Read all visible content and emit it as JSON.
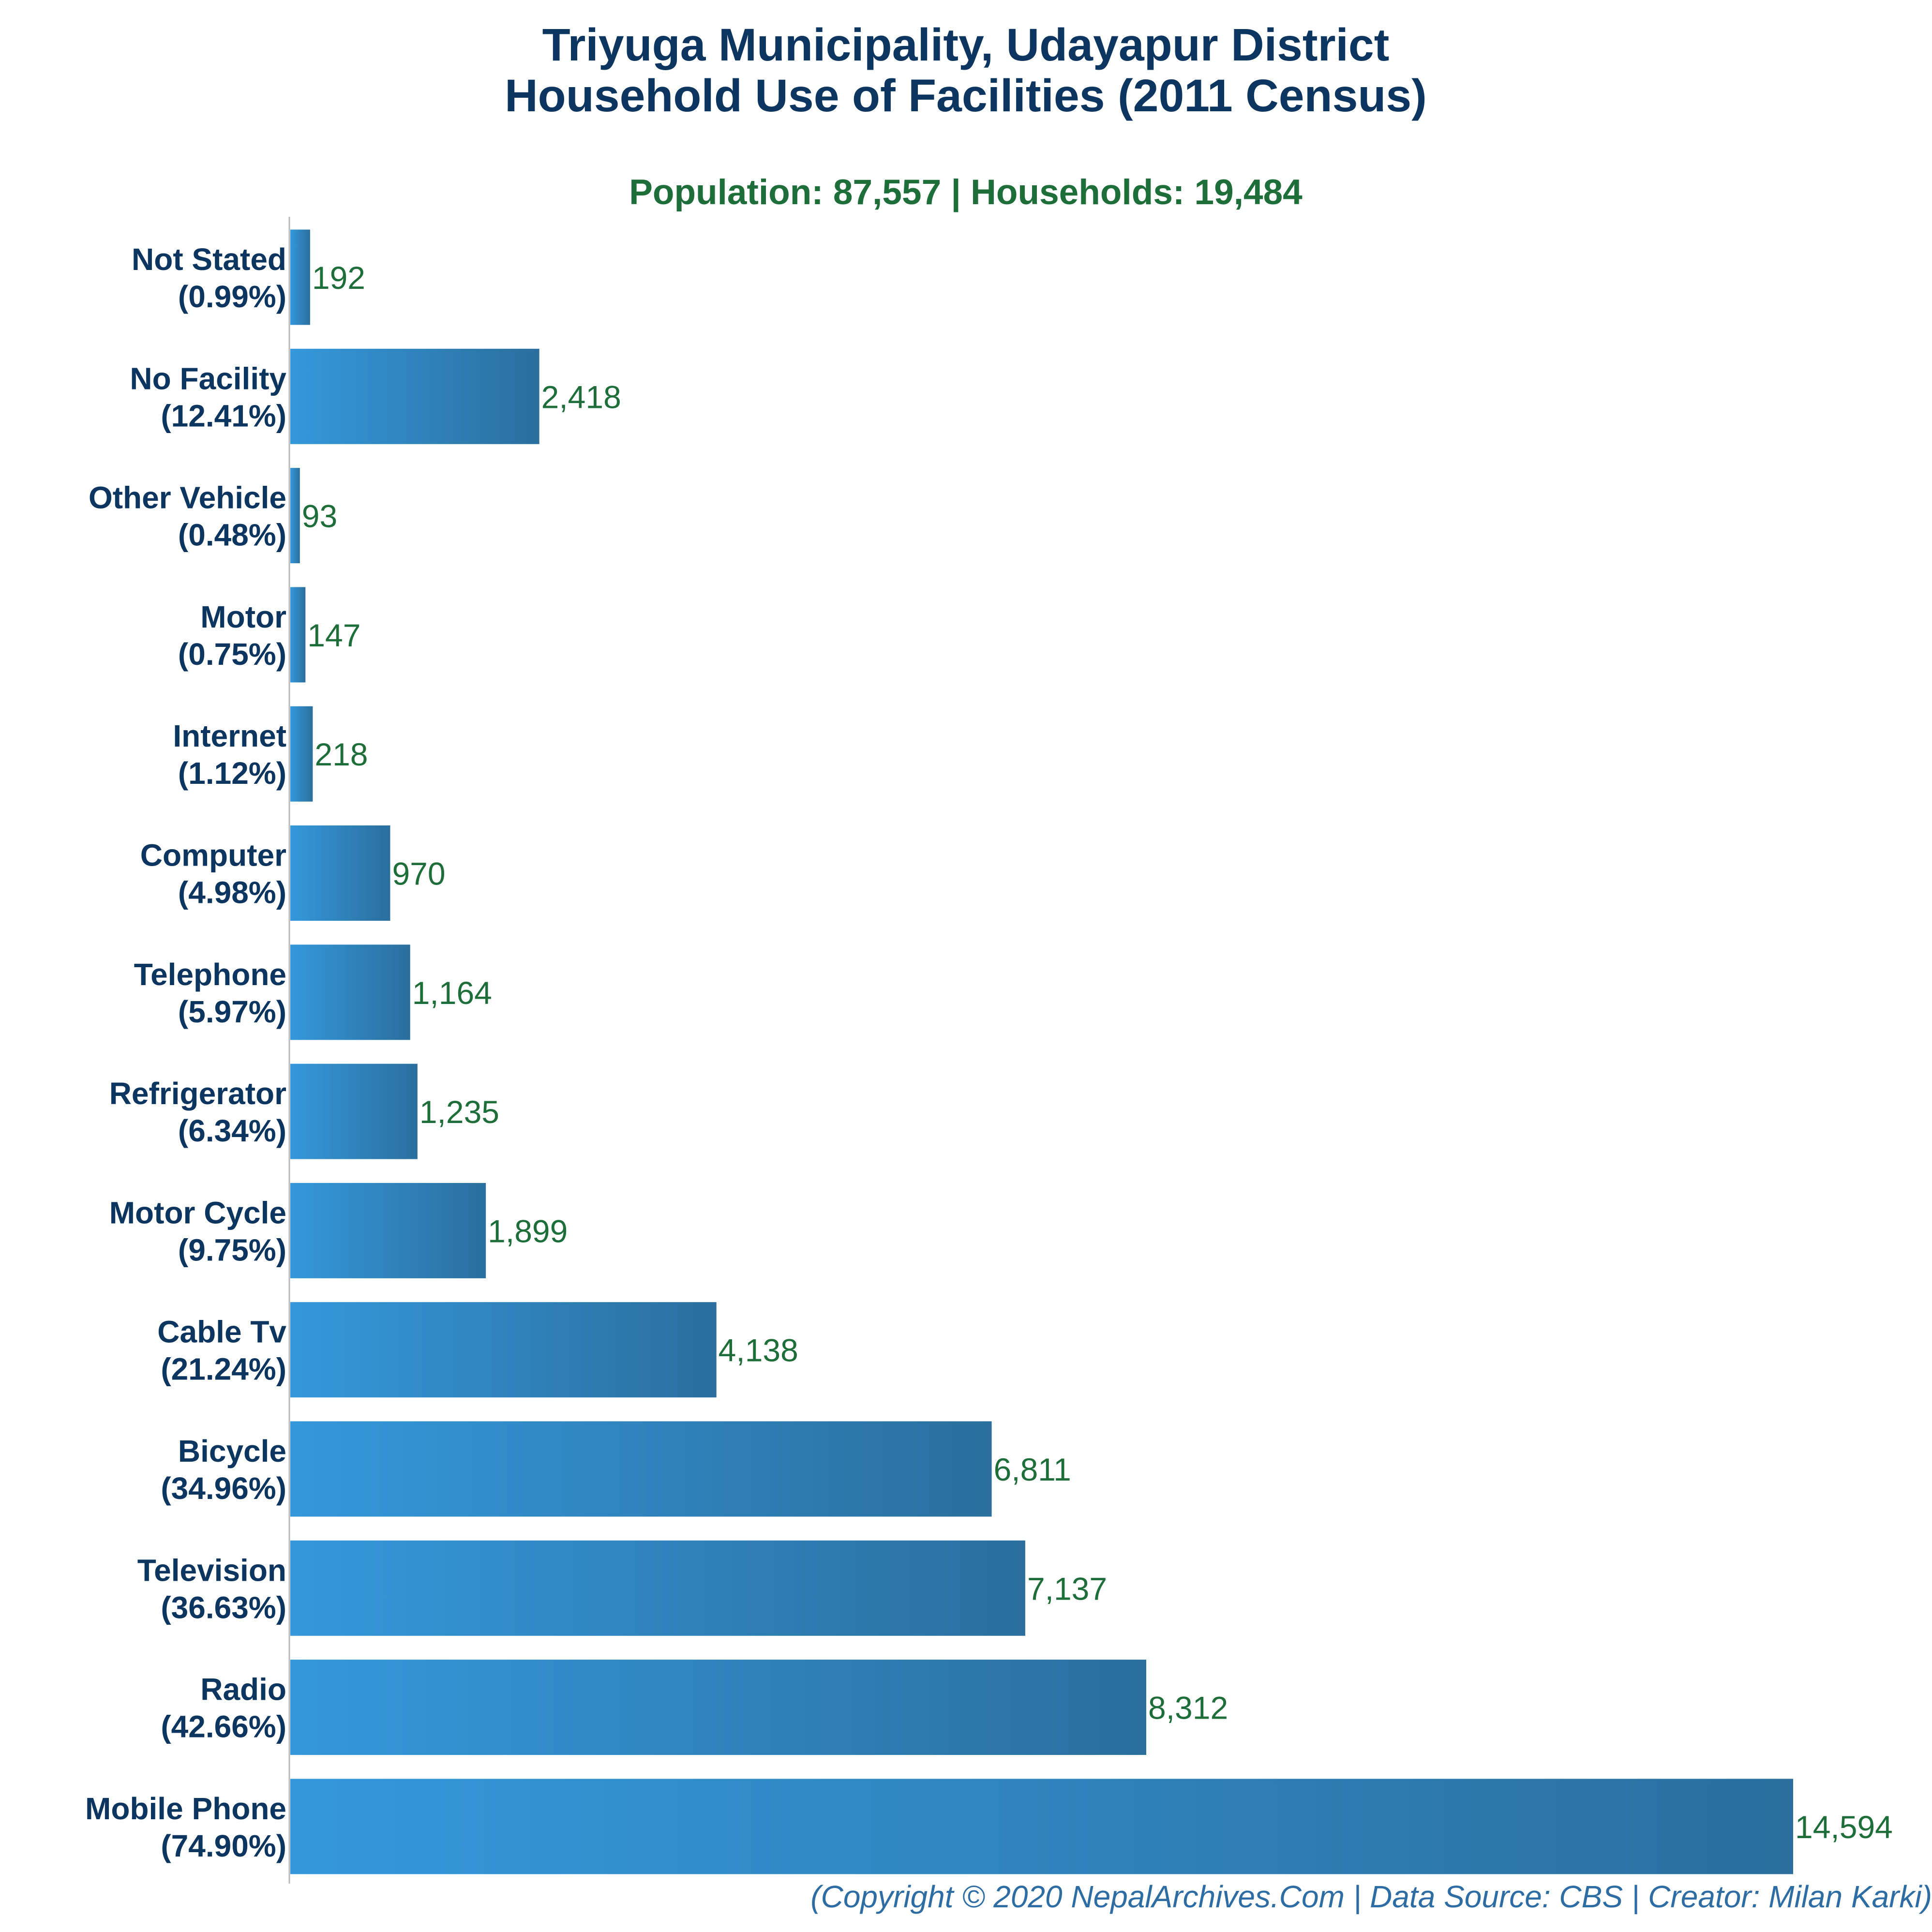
{
  "colors": {
    "title": "#0c3560",
    "subtitle": "#1e6e3a",
    "value_label": "#1e6e3a",
    "bar_gradient_start": "#3498db",
    "bar_gradient_end": "#2a6f9e",
    "footer": "#2e6da4"
  },
  "chart_data": {
    "type": "bar",
    "orientation": "horizontal",
    "title": [
      "Triyuga Municipality, Udayapur District",
      "Household Use of Facilities (2011 Census)"
    ],
    "subtitle": "Population: 87,557 | Households: 19,484",
    "footer": "(Copyright © 2020 NepalArchives.Com | Data Source: CBS | Creator: Milan Karki)",
    "xlim": [
      0,
      14594
    ],
    "grid": false,
    "categories": [
      "Not Stated",
      "No Facility",
      "Other Vehicle",
      "Motor",
      "Internet",
      "Computer",
      "Telephone",
      "Refrigerator",
      "Motor Cycle",
      "Cable Tv",
      "Bicycle",
      "Television",
      "Radio",
      "Mobile Phone"
    ],
    "percent_labels": [
      "(0.99%)",
      "(12.41%)",
      "(0.48%)",
      "(0.75%)",
      "(1.12%)",
      "(4.98%)",
      "(5.97%)",
      "(6.34%)",
      "(9.75%)",
      "(21.24%)",
      "(34.96%)",
      "(36.63%)",
      "(42.66%)",
      "(74.90%)"
    ],
    "values": [
      192,
      2418,
      93,
      147,
      218,
      970,
      1164,
      1235,
      1899,
      4138,
      6811,
      7137,
      8312,
      14594
    ],
    "value_labels": [
      "192",
      "2,418",
      "93",
      "147",
      "218",
      "970",
      "1,164",
      "1,235",
      "1,899",
      "4,138",
      "6,811",
      "7,137",
      "8,312",
      "14,594"
    ]
  }
}
